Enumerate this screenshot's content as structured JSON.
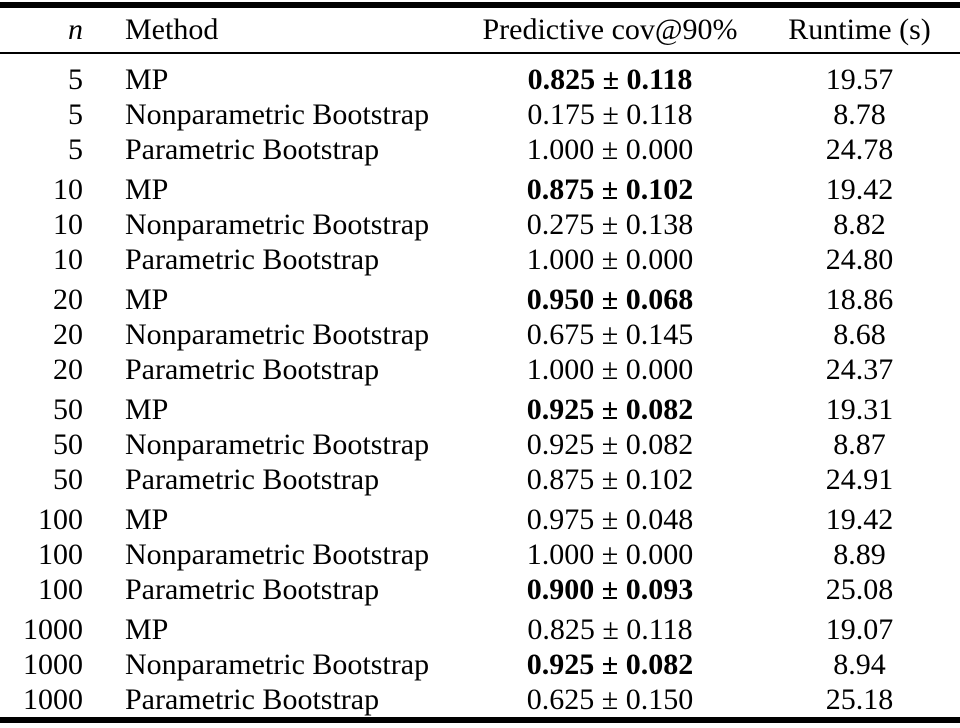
{
  "colors": {
    "text": "#000000",
    "background": "#ffffff",
    "rule": "#000000"
  },
  "table": {
    "columns": [
      "n",
      "Method",
      "Predictive cov@90%",
      "Runtime (s)"
    ],
    "groups": [
      {
        "n": "5",
        "rows": [
          {
            "method": "MP",
            "cov": "0.825 ± 0.118",
            "cov_bold": true,
            "runtime": "19.57"
          },
          {
            "method": "Nonparametric Bootstrap",
            "cov": "0.175 ± 0.118",
            "cov_bold": false,
            "runtime": "8.78"
          },
          {
            "method": "Parametric Bootstrap",
            "cov": "1.000 ± 0.000",
            "cov_bold": false,
            "runtime": "24.78"
          }
        ]
      },
      {
        "n": "10",
        "rows": [
          {
            "method": "MP",
            "cov": "0.875 ± 0.102",
            "cov_bold": true,
            "runtime": "19.42"
          },
          {
            "method": "Nonparametric Bootstrap",
            "cov": "0.275 ± 0.138",
            "cov_bold": false,
            "runtime": "8.82"
          },
          {
            "method": "Parametric Bootstrap",
            "cov": "1.000 ± 0.000",
            "cov_bold": false,
            "runtime": "24.80"
          }
        ]
      },
      {
        "n": "20",
        "rows": [
          {
            "method": "MP",
            "cov": "0.950 ± 0.068",
            "cov_bold": true,
            "runtime": "18.86"
          },
          {
            "method": "Nonparametric Bootstrap",
            "cov": "0.675 ± 0.145",
            "cov_bold": false,
            "runtime": "8.68"
          },
          {
            "method": "Parametric Bootstrap",
            "cov": "1.000 ± 0.000",
            "cov_bold": false,
            "runtime": "24.37"
          }
        ]
      },
      {
        "n": "50",
        "rows": [
          {
            "method": "MP",
            "cov": "0.925 ± 0.082",
            "cov_bold": true,
            "runtime": "19.31"
          },
          {
            "method": "Nonparametric Bootstrap",
            "cov": "0.925 ± 0.082",
            "cov_bold": false,
            "runtime": "8.87"
          },
          {
            "method": "Parametric Bootstrap",
            "cov": "0.875 ± 0.102",
            "cov_bold": false,
            "runtime": "24.91"
          }
        ]
      },
      {
        "n": "100",
        "rows": [
          {
            "method": "MP",
            "cov": "0.975 ± 0.048",
            "cov_bold": false,
            "runtime": "19.42"
          },
          {
            "method": "Nonparametric Bootstrap",
            "cov": "1.000 ± 0.000",
            "cov_bold": false,
            "runtime": "8.89"
          },
          {
            "method": "Parametric Bootstrap",
            "cov": "0.900 ± 0.093",
            "cov_bold": true,
            "runtime": "25.08"
          }
        ]
      },
      {
        "n": "1000",
        "rows": [
          {
            "method": "MP",
            "cov": "0.825 ± 0.118",
            "cov_bold": false,
            "runtime": "19.07"
          },
          {
            "method": "Nonparametric Bootstrap",
            "cov": "0.925 ± 0.082",
            "cov_bold": true,
            "runtime": "8.94"
          },
          {
            "method": "Parametric Bootstrap",
            "cov": "0.625 ± 0.150",
            "cov_bold": false,
            "runtime": "25.18"
          }
        ]
      }
    ]
  }
}
